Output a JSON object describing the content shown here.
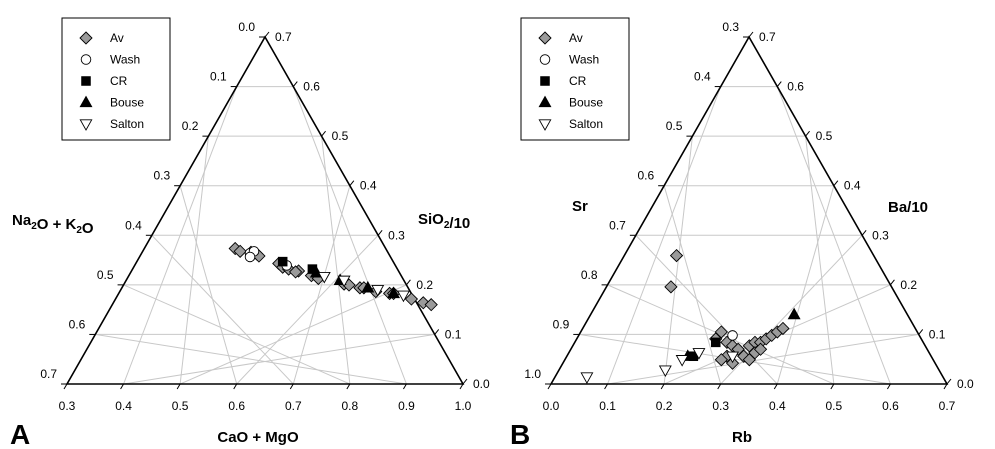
{
  "chart_data": [
    {
      "type": "scatter",
      "subtype": "ternary",
      "panel_label": "A",
      "vertex_labels": {
        "left": "Na₂O + K₂O",
        "right": "SiO₂/10",
        "bottom": "CaO + MgO"
      },
      "ticks": {
        "bottom": [
          "0.3",
          "0.4",
          "0.5",
          "0.6",
          "0.7",
          "0.8",
          "0.9",
          "1.0"
        ],
        "left": [
          "0.0",
          "0.1",
          "0.2",
          "0.3",
          "0.4",
          "0.5",
          "0.6",
          "0.7"
        ],
        "right": [
          "0.7",
          "0.6",
          "0.5",
          "0.4",
          "0.3",
          "0.2",
          "0.1",
          "0.0"
        ]
      },
      "series": [
        {
          "name": "Av",
          "marker": "diamond",
          "fill": "#9a9a9a",
          "points": [
            [
              0.37,
              0.35
            ],
            [
              0.365,
              0.335
            ],
            [
              0.33,
              0.32
            ],
            [
              0.34,
              0.33
            ],
            [
              0.33,
              0.31
            ],
            [
              0.3,
              0.27
            ],
            [
              0.3,
              0.25
            ],
            [
              0.29,
              0.24
            ],
            [
              0.27,
              0.23
            ],
            [
              0.28,
              0.225
            ],
            [
              0.25,
              0.205
            ],
            [
              0.24,
              0.19
            ],
            [
              0.19,
              0.16
            ],
            [
              0.18,
              0.155
            ],
            [
              0.16,
              0.14
            ],
            [
              0.15,
              0.14
            ],
            [
              0.13,
              0.12
            ],
            [
              0.1,
              0.11
            ],
            [
              0.09,
              0.11
            ],
            [
              0.06,
              0.08
            ],
            [
              0.04,
              0.06
            ],
            [
              0.025,
              0.05
            ]
          ]
        },
        {
          "name": "Wash",
          "marker": "circle",
          "fill": "#ffffff",
          "points": [
            [
              0.345,
              0.325
            ],
            [
              0.33,
              0.335
            ],
            [
              0.355,
              0.305
            ],
            [
              0.285,
              0.26
            ]
          ]
        },
        {
          "name": "CR",
          "marker": "square",
          "fill": "#000000",
          "points": [
            [
              0.285,
              0.28
            ],
            [
              0.23,
              0.24
            ]
          ]
        },
        {
          "name": "Bouse",
          "marker": "triangle",
          "fill": "#000000",
          "points": [
            [
              0.23,
              0.22
            ],
            [
              0.19,
              0.18
            ],
            [
              0.14,
              0.14
            ],
            [
              0.09,
              0.11
            ]
          ]
        },
        {
          "name": "Salton",
          "marker": "triangle-down",
          "fill": "#ffffff",
          "points": [
            [
              0.22,
              0.2
            ],
            [
              0.18,
              0.18
            ],
            [
              0.12,
              0.13
            ],
            [
              0.07,
              0.1
            ]
          ]
        }
      ],
      "legend": {
        "placement": "top-left",
        "entries": [
          "Av",
          "Wash",
          "CR",
          "Bouse",
          "Salton"
        ]
      }
    },
    {
      "type": "scatter",
      "subtype": "ternary",
      "panel_label": "B",
      "vertex_labels": {
        "left": "Sr",
        "right": "Ba/10",
        "bottom": "Rb"
      },
      "ticks": {
        "bottom": [
          "0.0",
          "0.1",
          "0.2",
          "0.3",
          "0.4",
          "0.5",
          "0.6",
          "0.7"
        ],
        "left": [
          "0.3",
          "0.4",
          "0.5",
          "0.6",
          "0.7",
          "0.8",
          "0.9",
          "1.0"
        ],
        "right": [
          "0.7",
          "0.6",
          "0.5",
          "0.4",
          "0.3",
          "0.2",
          "0.1",
          "0.0"
        ]
      },
      "series": [
        {
          "name": "Av",
          "marker": "diamond",
          "fill": "#9a9a9a",
          "points": [
            [
              0.21,
              0.37
            ],
            [
              0.2,
              0.28
            ],
            [
              0.29,
              0.15
            ],
            [
              0.28,
              0.13
            ],
            [
              0.3,
              0.12
            ],
            [
              0.31,
              0.11
            ],
            [
              0.32,
              0.1
            ],
            [
              0.34,
              0.11
            ],
            [
              0.35,
              0.12
            ],
            [
              0.36,
              0.12
            ],
            [
              0.37,
              0.13
            ],
            [
              0.38,
              0.14
            ],
            [
              0.39,
              0.15
            ],
            [
              0.4,
              0.16
            ],
            [
              0.33,
              0.08
            ],
            [
              0.34,
              0.07
            ],
            [
              0.35,
              0.09
            ],
            [
              0.36,
              0.1
            ],
            [
              0.3,
              0.08
            ],
            [
              0.31,
              0.06
            ],
            [
              0.29,
              0.07
            ]
          ]
        },
        {
          "name": "Wash",
          "marker": "circle",
          "fill": "#ffffff",
          "points": [
            [
              0.31,
              0.14
            ]
          ]
        },
        {
          "name": "CR",
          "marker": "square",
          "fill": "#000000",
          "points": [
            [
              0.24,
              0.08
            ],
            [
              0.28,
              0.12
            ]
          ]
        },
        {
          "name": "Bouse",
          "marker": "triangle",
          "fill": "#000000",
          "points": [
            [
              0.23,
              0.08
            ],
            [
              0.42,
              0.2
            ]
          ]
        },
        {
          "name": "Salton",
          "marker": "triangle-down",
          "fill": "#ffffff",
          "points": [
            [
              0.05,
              0.02
            ],
            [
              0.19,
              0.04
            ],
            [
              0.22,
              0.07
            ],
            [
              0.25,
              0.09
            ],
            [
              0.31,
              0.08
            ]
          ]
        }
      ],
      "legend": {
        "placement": "top-left",
        "entries": [
          "Av",
          "Wash",
          "CR",
          "Bouse",
          "Salton"
        ]
      }
    }
  ]
}
